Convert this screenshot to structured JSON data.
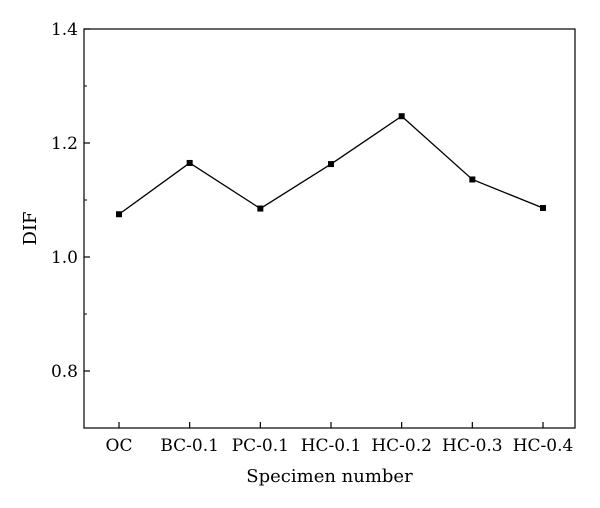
{
  "chart_data": {
    "type": "line",
    "title": "",
    "xlabel": "Specimen number",
    "ylabel": "DIF",
    "categories": [
      "OC",
      "BC-0.1",
      "PC-0.1",
      "HC-0.1",
      "HC-0.2",
      "HC-0.3",
      "HC-0.4"
    ],
    "series": [
      {
        "values": [
          1.075,
          1.165,
          1.085,
          1.163,
          1.247,
          1.136,
          1.086
        ]
      }
    ],
    "ylim": [
      0.7,
      1.4
    ],
    "yticks": [
      0.8,
      1.0,
      1.2,
      1.4
    ],
    "ytick_labels": [
      "0.8",
      "1.0",
      "1.2",
      "1.4"
    ],
    "grid": false,
    "marker": "square",
    "line_color": "#000000"
  }
}
